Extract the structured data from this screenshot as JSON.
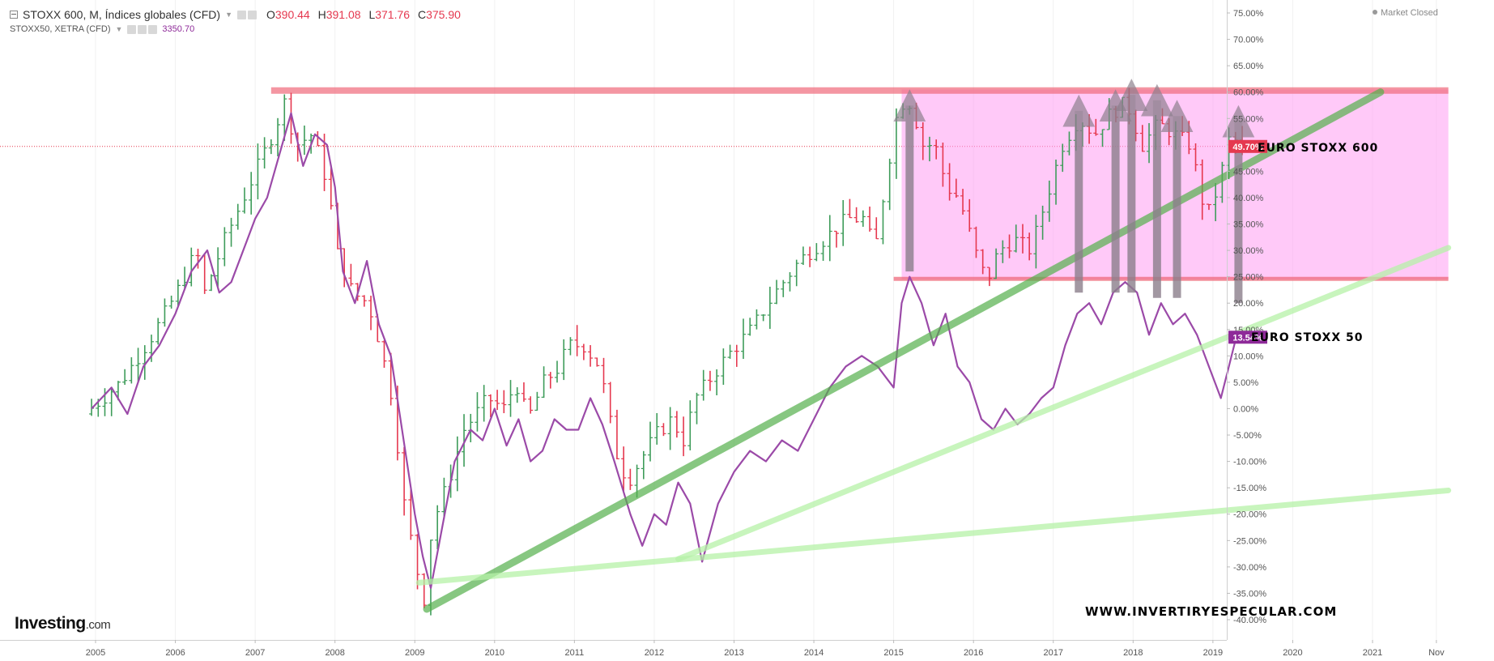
{
  "header": {
    "symbol_label": "STOXX 600, M, Índices globales (CFD)",
    "ohlc": [
      {
        "k": "O",
        "v": "390.44"
      },
      {
        "k": "H",
        "v": "391.08"
      },
      {
        "k": "L",
        "v": "371.76"
      },
      {
        "k": "C",
        "v": "375.90"
      }
    ],
    "second_series_label": "STOXX50, XETRA (CFD)",
    "second_series_value": "3350.70",
    "market_status": "Market Closed"
  },
  "branding": {
    "logo_text": "Investing",
    "logo_suffix": ".com",
    "watermark_url": "WWW.INVERTIRYESPECULAR.COM"
  },
  "colors": {
    "up_bar": "#3e9c5a",
    "down_bar": "#e5384f",
    "stoxx50_line": "#9b4aa8",
    "zone_fill": "#ff9cf3",
    "resistance": "#f06a7c",
    "arrow": "#8c7f8c",
    "trend_dark": "#55b04c",
    "trend_light": "#b6f2a8",
    "current_label_600": "#e5384f",
    "current_label_50": "#8e2a99"
  },
  "chart_data": {
    "type": "ohlc+line",
    "title": "STOXX 600, M, Índices globales (CFD)",
    "y_axis_unit": "percent change",
    "ylim": [
      -42,
      77
    ],
    "y_ticks": [
      "75.00%",
      "70.00%",
      "65.00%",
      "60.00%",
      "55.00%",
      "50.00%",
      "45.00%",
      "40.00%",
      "35.00%",
      "30.00%",
      "25.00%",
      "20.00%",
      "15.00%",
      "10.00%",
      "5.00%",
      "0.00%",
      "-5.00%",
      "-10.00%",
      "-15.00%",
      "-20.00%",
      "-25.00%",
      "-30.00%",
      "-35.00%",
      "-40.00%"
    ],
    "x_ticks": [
      "2005",
      "2006",
      "2007",
      "2008",
      "2009",
      "2010",
      "2011",
      "2012",
      "2013",
      "2014",
      "2015",
      "2016",
      "2017",
      "2018",
      "2019",
      "2020",
      "2021",
      "Nov"
    ],
    "x_tick_years": [
      2005,
      2006,
      2007,
      2008,
      2009,
      2010,
      2011,
      2012,
      2013,
      2014,
      2015,
      2016,
      2017,
      2018,
      2019,
      2020,
      2021,
      2021.8
    ],
    "current_values": {
      "stoxx600": "49.70%",
      "stoxx50": "13.54%"
    },
    "series_labels": {
      "stoxx600": "EURO STOXX 600",
      "stoxx50": "EURO STOXX 50"
    },
    "stoxx600_path": [
      [
        2004.95,
        -1
      ],
      [
        2005.4,
        5
      ],
      [
        2005.8,
        14
      ],
      [
        2006.1,
        22
      ],
      [
        2006.35,
        30
      ],
      [
        2006.45,
        22
      ],
      [
        2006.7,
        32
      ],
      [
        2007.0,
        42
      ],
      [
        2007.3,
        52
      ],
      [
        2007.45,
        58
      ],
      [
        2007.6,
        50
      ],
      [
        2007.8,
        52
      ],
      [
        2008.0,
        42
      ],
      [
        2008.1,
        30
      ],
      [
        2008.3,
        22
      ],
      [
        2008.5,
        20
      ],
      [
        2008.65,
        12
      ],
      [
        2008.8,
        2
      ],
      [
        2008.95,
        -18
      ],
      [
        2009.1,
        -30
      ],
      [
        2009.2,
        -36
      ],
      [
        2009.3,
        -22
      ],
      [
        2009.5,
        -14
      ],
      [
        2009.7,
        -4
      ],
      [
        2010.0,
        2
      ],
      [
        2010.2,
        0
      ],
      [
        2010.35,
        5
      ],
      [
        2010.5,
        -2
      ],
      [
        2010.7,
        5
      ],
      [
        2010.9,
        8
      ],
      [
        2011.0,
        12
      ],
      [
        2011.2,
        12
      ],
      [
        2011.4,
        8
      ],
      [
        2011.6,
        -8
      ],
      [
        2011.75,
        -14
      ],
      [
        2011.9,
        -10
      ],
      [
        2012.1,
        -5
      ],
      [
        2012.3,
        -2
      ],
      [
        2012.45,
        -6
      ],
      [
        2012.6,
        2
      ],
      [
        2012.8,
        6
      ],
      [
        2013.0,
        10
      ],
      [
        2013.3,
        15
      ],
      [
        2013.6,
        22
      ],
      [
        2013.9,
        28
      ],
      [
        2014.2,
        32
      ],
      [
        2014.5,
        36
      ],
      [
        2014.7,
        36
      ],
      [
        2014.85,
        30
      ],
      [
        2015.0,
        45
      ],
      [
        2015.15,
        58
      ],
      [
        2015.3,
        58
      ],
      [
        2015.45,
        50
      ],
      [
        2015.6,
        50
      ],
      [
        2015.75,
        42
      ],
      [
        2015.9,
        40
      ],
      [
        2016.1,
        30
      ],
      [
        2016.25,
        24
      ],
      [
        2016.4,
        30
      ],
      [
        2016.6,
        32
      ],
      [
        2016.8,
        30
      ],
      [
        2017.0,
        40
      ],
      [
        2017.2,
        50
      ],
      [
        2017.4,
        55
      ],
      [
        2017.6,
        52
      ],
      [
        2017.8,
        56
      ],
      [
        2018.0,
        58
      ],
      [
        2018.2,
        50
      ],
      [
        2018.4,
        54
      ],
      [
        2018.6,
        52
      ],
      [
        2018.8,
        50
      ],
      [
        2019.0,
        36
      ],
      [
        2019.15,
        42
      ],
      [
        2019.3,
        52
      ],
      [
        2019.42,
        49.7
      ]
    ],
    "stoxx50_line": [
      [
        2004.95,
        0
      ],
      [
        2005.2,
        4
      ],
      [
        2005.4,
        -1
      ],
      [
        2005.6,
        8
      ],
      [
        2005.8,
        12
      ],
      [
        2006.0,
        18
      ],
      [
        2006.2,
        26
      ],
      [
        2006.4,
        30
      ],
      [
        2006.55,
        22
      ],
      [
        2006.7,
        24
      ],
      [
        2006.9,
        32
      ],
      [
        2007.0,
        36
      ],
      [
        2007.15,
        40
      ],
      [
        2007.3,
        48
      ],
      [
        2007.45,
        56
      ],
      [
        2007.6,
        46
      ],
      [
        2007.75,
        52
      ],
      [
        2007.9,
        50
      ],
      [
        2008.0,
        42
      ],
      [
        2008.1,
        26
      ],
      [
        2008.25,
        20
      ],
      [
        2008.4,
        28
      ],
      [
        2008.55,
        16
      ],
      [
        2008.7,
        10
      ],
      [
        2008.85,
        -5
      ],
      [
        2009.0,
        -20
      ],
      [
        2009.1,
        -28
      ],
      [
        2009.2,
        -34
      ],
      [
        2009.35,
        -22
      ],
      [
        2009.5,
        -10
      ],
      [
        2009.7,
        -4
      ],
      [
        2009.85,
        -6
      ],
      [
        2010.0,
        0
      ],
      [
        2010.15,
        -7
      ],
      [
        2010.3,
        -2
      ],
      [
        2010.45,
        -10
      ],
      [
        2010.6,
        -8
      ],
      [
        2010.75,
        -2
      ],
      [
        2010.9,
        -4
      ],
      [
        2011.05,
        -4
      ],
      [
        2011.2,
        2
      ],
      [
        2011.35,
        -3
      ],
      [
        2011.5,
        -10
      ],
      [
        2011.7,
        -20
      ],
      [
        2011.85,
        -26
      ],
      [
        2012.0,
        -20
      ],
      [
        2012.15,
        -22
      ],
      [
        2012.3,
        -14
      ],
      [
        2012.45,
        -18
      ],
      [
        2012.6,
        -29
      ],
      [
        2012.8,
        -18
      ],
      [
        2013.0,
        -12
      ],
      [
        2013.2,
        -8
      ],
      [
        2013.4,
        -10
      ],
      [
        2013.6,
        -6
      ],
      [
        2013.8,
        -8
      ],
      [
        2014.0,
        -2
      ],
      [
        2014.2,
        4
      ],
      [
        2014.4,
        8
      ],
      [
        2014.6,
        10
      ],
      [
        2014.8,
        8
      ],
      [
        2015.0,
        4
      ],
      [
        2015.1,
        20
      ],
      [
        2015.2,
        25
      ],
      [
        2015.35,
        20
      ],
      [
        2015.5,
        12
      ],
      [
        2015.65,
        18
      ],
      [
        2015.8,
        8
      ],
      [
        2015.95,
        5
      ],
      [
        2016.1,
        -2
      ],
      [
        2016.25,
        -4
      ],
      [
        2016.4,
        0
      ],
      [
        2016.55,
        -3
      ],
      [
        2016.7,
        -1
      ],
      [
        2016.85,
        2
      ],
      [
        2017.0,
        4
      ],
      [
        2017.15,
        12
      ],
      [
        2017.3,
        18
      ],
      [
        2017.45,
        20
      ],
      [
        2017.6,
        16
      ],
      [
        2017.75,
        22
      ],
      [
        2017.9,
        24
      ],
      [
        2018.05,
        22
      ],
      [
        2018.2,
        14
      ],
      [
        2018.35,
        20
      ],
      [
        2018.5,
        16
      ],
      [
        2018.65,
        18
      ],
      [
        2018.8,
        14
      ],
      [
        2018.95,
        8
      ],
      [
        2019.1,
        2
      ],
      [
        2019.2,
        8
      ],
      [
        2019.3,
        14
      ],
      [
        2019.42,
        13.54
      ]
    ],
    "annotations": {
      "zone": {
        "x": [
          2015.1,
          2021.95
        ],
        "y": [
          24.5,
          60.5
        ]
      },
      "upper_line": {
        "x": [
          2007.2,
          2021.95
        ],
        "y": 60.3
      },
      "lower_line": {
        "x": [
          2015.0,
          2021.95
        ],
        "y": 24.6
      },
      "trendlines": [
        {
          "style": "dark",
          "from": [
            2009.15,
            -38
          ],
          "to": [
            2021.1,
            60
          ]
        },
        {
          "style": "light",
          "from": [
            2012.3,
            -28.5
          ],
          "to": [
            2021.95,
            30.5
          ]
        },
        {
          "style": "light",
          "from": [
            2009.05,
            -33
          ],
          "to": [
            2021.95,
            -15.5
          ]
        }
      ],
      "arrows": [
        {
          "x": 2015.2,
          "y0": 26,
          "y1": 59
        },
        {
          "x": 2017.32,
          "y0": 22,
          "y1": 58
        },
        {
          "x": 2017.78,
          "y0": 22,
          "y1": 59
        },
        {
          "x": 2017.98,
          "y0": 22,
          "y1": 61
        },
        {
          "x": 2018.3,
          "y0": 21,
          "y1": 60
        },
        {
          "x": 2018.55,
          "y0": 21,
          "y1": 57
        },
        {
          "x": 2019.32,
          "y0": 20,
          "y1": 56
        }
      ]
    }
  }
}
